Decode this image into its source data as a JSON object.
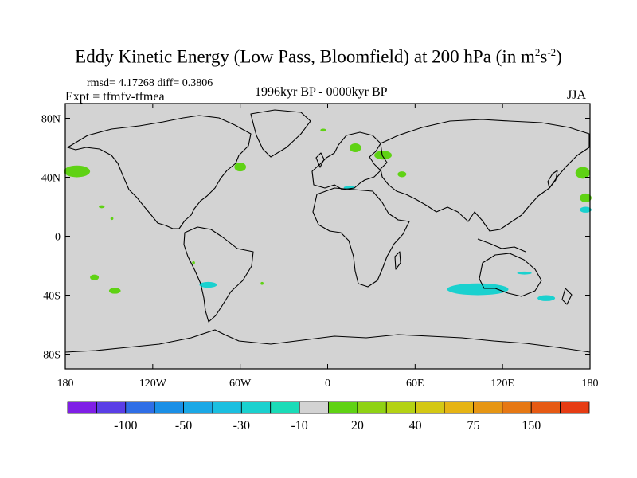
{
  "title": {
    "main": "Eddy Kinetic Energy (Low Pass, Bloomfield) at 200 hPa (in m",
    "sup1": "2",
    "mid": "s",
    "sup2": "-2",
    "end": ")"
  },
  "subtitle": {
    "stats": "rmsd= 4.17268 diff= 0.3806",
    "expt": "Expt = tfmfv-tfmea",
    "period": "1996kyr BP - 0000kyr BP",
    "season": "JJA"
  },
  "map": {
    "projection": "cylindrical-equidistant",
    "lon_range": [
      -180,
      180
    ],
    "lat_range": [
      -90,
      90
    ],
    "background_color": "#d3d3d3",
    "lat_ticks": [
      {
        "value": 80,
        "label": "80N"
      },
      {
        "value": 40,
        "label": "40N"
      },
      {
        "value": 0,
        "label": "0"
      },
      {
        "value": -40,
        "label": "40S"
      },
      {
        "value": -80,
        "label": "80S"
      }
    ],
    "lon_ticks": [
      {
        "value": -180,
        "label": "180"
      },
      {
        "value": -120,
        "label": "120W"
      },
      {
        "value": -60,
        "label": "60W"
      },
      {
        "value": 0,
        "label": "0"
      },
      {
        "value": 60,
        "label": "60E"
      },
      {
        "value": 120,
        "label": "120E"
      },
      {
        "value": 180,
        "label": "180"
      }
    ]
  },
  "colorbar": {
    "labels": [
      "-100",
      "-50",
      "-30",
      "-10",
      "20",
      "40",
      "75",
      "150"
    ],
    "colors": [
      "#7f1ee6",
      "#5a3ee6",
      "#2f6ee6",
      "#1a8fe6",
      "#1aa8e6",
      "#1abfe0",
      "#1ad1cf",
      "#1adcb8",
      "#d3d3d3",
      "#5fd214",
      "#8fd214",
      "#b4d214",
      "#d4c814",
      "#e6b414",
      "#e69614",
      "#e67814",
      "#e65a14",
      "#e63c14"
    ]
  },
  "anomaly_regions": [
    {
      "name": "n-pacific-west-green",
      "lon": -172,
      "lat": 44,
      "rlon": 9,
      "rlat": 4,
      "color": "#5fd214"
    },
    {
      "name": "n-pacific-east-green",
      "lon": 175,
      "lat": 43,
      "rlon": 5,
      "rlat": 4,
      "color": "#5fd214"
    },
    {
      "name": "aleutian-green",
      "lon": 38,
      "lat": 55,
      "rlon": 6,
      "rlat": 3,
      "color": "#5fd214"
    },
    {
      "name": "pacific-edge-green-east",
      "lon": 177,
      "lat": 26,
      "rlon": 4,
      "rlat": 3,
      "color": "#5fd214"
    },
    {
      "name": "pacific-edge-cyan-east",
      "lon": 177,
      "lat": 18,
      "rlon": 4,
      "rlat": 2,
      "color": "#1ad1cf"
    },
    {
      "name": "n-america-green",
      "lon": -60,
      "lat": 47,
      "rlon": 4,
      "rlat": 3,
      "color": "#5fd214"
    },
    {
      "name": "scandinavia-green",
      "lon": 19,
      "lat": 60,
      "rlon": 4,
      "rlat": 3,
      "color": "#5fd214"
    },
    {
      "name": "arctic-green-small",
      "lon": -3,
      "lat": 72,
      "rlon": 2,
      "rlat": 1,
      "color": "#5fd214"
    },
    {
      "name": "central-asia-green",
      "lon": 51,
      "lat": 42,
      "rlon": 3,
      "rlat": 2,
      "color": "#5fd214"
    },
    {
      "name": "mediterranean-cyan",
      "lon": 15,
      "lat": 33,
      "rlon": 4,
      "rlat": 1,
      "color": "#1ad1cf"
    },
    {
      "name": "pacific-small-green",
      "lon": -155,
      "lat": 20,
      "rlon": 2,
      "rlat": 1,
      "color": "#5fd214"
    },
    {
      "name": "pacific-small-green-2",
      "lon": -148,
      "lat": 12,
      "rlon": 1,
      "rlat": 1,
      "color": "#5fd214"
    },
    {
      "name": "s-pacific-green-1",
      "lon": -160,
      "lat": -28,
      "rlon": 3,
      "rlat": 2,
      "color": "#5fd214"
    },
    {
      "name": "s-pacific-green-2",
      "lon": -146,
      "lat": -37,
      "rlon": 4,
      "rlat": 2,
      "color": "#5fd214"
    },
    {
      "name": "s-pacific-cyan",
      "lon": -82,
      "lat": -33,
      "rlon": 6,
      "rlat": 2,
      "color": "#1ad1cf"
    },
    {
      "name": "s-atlantic-green-small",
      "lon": -45,
      "lat": -32,
      "rlon": 1,
      "rlat": 1,
      "color": "#5fd214"
    },
    {
      "name": "pacific-tiny-green",
      "lon": -92,
      "lat": -18,
      "rlon": 1,
      "rlat": 1,
      "color": "#5fd214"
    },
    {
      "name": "indian-ocean-cyan",
      "lon": 103,
      "lat": -36,
      "rlon": 21,
      "rlat": 4,
      "color": "#1ad1cf"
    },
    {
      "name": "australia-cyan-east",
      "lon": 135,
      "lat": -25,
      "rlon": 5,
      "rlat": 1,
      "color": "#1ad1cf"
    },
    {
      "name": "tasman-cyan",
      "lon": 150,
      "lat": -42,
      "rlon": 6,
      "rlat": 2,
      "color": "#1ad1cf"
    }
  ]
}
